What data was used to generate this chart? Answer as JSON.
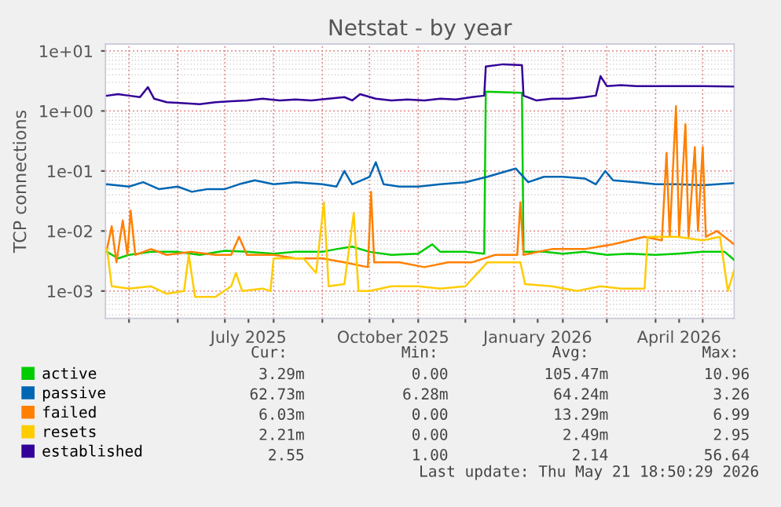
{
  "chart_data": {
    "type": "line",
    "title": "Netstat - by year",
    "ylabel": "TCP connections",
    "log": "y",
    "grid": true,
    "legend": "bottom",
    "marker": "none",
    "line_style": "solid",
    "xlim": [
      "2025-04-16",
      "2026-05-21"
    ],
    "ylim": [
      0.00035,
      13
    ],
    "yticks": [
      {
        "value": 0.001,
        "label": "1e-03"
      },
      {
        "value": 0.01,
        "label": "1e-02"
      },
      {
        "value": 0.1,
        "label": "1e-01"
      },
      {
        "value": 1,
        "label": "1e+00"
      },
      {
        "value": 10,
        "label": "1e+01"
      }
    ],
    "xticks": [
      {
        "value": "2025-05-01",
        "label": null
      },
      {
        "value": "2025-06-01",
        "label": null
      },
      {
        "value": "2025-07-01",
        "label": null
      },
      {
        "value": "2025-07-16",
        "label": "July 2025"
      },
      {
        "value": "2025-08-01",
        "label": null
      },
      {
        "value": "2025-09-01",
        "label": null
      },
      {
        "value": "2025-10-01",
        "label": null
      },
      {
        "value": "2025-10-16",
        "label": "October 2025"
      },
      {
        "value": "2025-11-01",
        "label": null
      },
      {
        "value": "2025-12-01",
        "label": null
      },
      {
        "value": "2026-01-01",
        "label": null
      },
      {
        "value": "2026-01-16",
        "label": "January 2026"
      },
      {
        "value": "2026-02-01",
        "label": null
      },
      {
        "value": "2026-03-01",
        "label": null
      },
      {
        "value": "2026-04-01",
        "label": null
      },
      {
        "value": "2026-04-16",
        "label": "April 2026"
      },
      {
        "value": "2026-05-01",
        "label": null
      }
    ],
    "series": [
      {
        "name": "active",
        "color": "#00cc00",
        "x": [
          "2025-04-17",
          "2025-04-24",
          "2025-05-01",
          "2025-05-15",
          "2025-06-01",
          "2025-06-15",
          "2025-07-01",
          "2025-07-15",
          "2025-08-01",
          "2025-08-15",
          "2025-09-01",
          "2025-09-10",
          "2025-09-20",
          "2025-10-01",
          "2025-10-15",
          "2025-11-01",
          "2025-11-10",
          "2025-11-15",
          "2025-12-01",
          "2025-12-13",
          "2025-12-14",
          "2026-01-06",
          "2026-01-07",
          "2026-01-20",
          "2026-02-01",
          "2026-02-15",
          "2026-03-01",
          "2026-03-15",
          "2026-04-01",
          "2026-04-15",
          "2026-05-01",
          "2026-05-15",
          "2026-05-21"
        ],
        "values": [
          0.0045,
          0.0035,
          0.004,
          0.0045,
          0.0045,
          0.004,
          0.0047,
          0.0045,
          0.0042,
          0.0045,
          0.0045,
          0.005,
          0.0055,
          0.0045,
          0.004,
          0.0042,
          0.006,
          0.0045,
          0.0045,
          0.0042,
          2.1,
          2.0,
          0.0045,
          0.0045,
          0.0042,
          0.0045,
          0.004,
          0.0042,
          0.004,
          0.0042,
          0.0045,
          0.0045,
          0.0033
        ]
      },
      {
        "name": "passive",
        "color": "#0066b3",
        "x": [
          "2025-04-17",
          "2025-05-01",
          "2025-05-10",
          "2025-05-20",
          "2025-06-01",
          "2025-06-10",
          "2025-06-20",
          "2025-07-01",
          "2025-07-10",
          "2025-07-20",
          "2025-08-01",
          "2025-08-15",
          "2025-09-01",
          "2025-09-10",
          "2025-09-15",
          "2025-09-20",
          "2025-10-01",
          "2025-10-05",
          "2025-10-10",
          "2025-10-20",
          "2025-11-01",
          "2025-11-15",
          "2025-12-01",
          "2025-12-15",
          "2026-01-02",
          "2026-01-10",
          "2026-01-20",
          "2026-02-01",
          "2026-02-15",
          "2026-02-22",
          "2026-02-28",
          "2026-03-05",
          "2026-03-20",
          "2026-04-01",
          "2026-04-15",
          "2026-05-01",
          "2026-05-21"
        ],
        "values": [
          0.06,
          0.055,
          0.065,
          0.05,
          0.055,
          0.045,
          0.05,
          0.05,
          0.06,
          0.07,
          0.06,
          0.065,
          0.06,
          0.055,
          0.1,
          0.06,
          0.08,
          0.14,
          0.06,
          0.055,
          0.055,
          0.06,
          0.065,
          0.08,
          0.11,
          0.065,
          0.08,
          0.08,
          0.075,
          0.06,
          0.1,
          0.07,
          0.065,
          0.06,
          0.06,
          0.058,
          0.063
        ]
      },
      {
        "name": "failed",
        "color": "#ff8000",
        "x": [
          "2025-04-17",
          "2025-04-20",
          "2025-04-23",
          "2025-04-27",
          "2025-04-30",
          "2025-05-02",
          "2025-05-05",
          "2025-05-15",
          "2025-05-25",
          "2025-06-10",
          "2025-06-25",
          "2025-07-05",
          "2025-07-10",
          "2025-07-15",
          "2025-08-01",
          "2025-08-15",
          "2025-09-01",
          "2025-09-15",
          "2025-09-30",
          "2025-10-02",
          "2025-10-04",
          "2025-10-20",
          "2025-11-05",
          "2025-11-20",
          "2025-12-05",
          "2025-12-20",
          "2026-01-03",
          "2026-01-05",
          "2026-01-07",
          "2026-01-25",
          "2026-02-15",
          "2026-03-05",
          "2026-03-25",
          "2026-04-05",
          "2026-04-08",
          "2026-04-10",
          "2026-04-14",
          "2026-04-16",
          "2026-04-20",
          "2026-04-22",
          "2026-04-26",
          "2026-04-28",
          "2026-05-01",
          "2026-05-03",
          "2026-05-10",
          "2026-05-21"
        ],
        "values": [
          0.005,
          0.012,
          0.003,
          0.015,
          0.004,
          0.022,
          0.004,
          0.005,
          0.004,
          0.0045,
          0.004,
          0.004,
          0.008,
          0.004,
          0.004,
          0.0035,
          0.0035,
          0.003,
          0.0025,
          0.045,
          0.003,
          0.003,
          0.0025,
          0.003,
          0.003,
          0.004,
          0.004,
          0.03,
          0.004,
          0.005,
          0.005,
          0.006,
          0.008,
          0.007,
          0.2,
          0.008,
          1.2,
          0.008,
          0.6,
          0.008,
          0.25,
          0.01,
          0.25,
          0.008,
          0.01,
          0.006
        ]
      },
      {
        "name": "resets",
        "color": "#ffcc00",
        "x": [
          "2025-04-17",
          "2025-04-20",
          "2025-05-01",
          "2025-05-15",
          "2025-05-25",
          "2025-06-05",
          "2025-06-08",
          "2025-06-12",
          "2025-06-25",
          "2025-07-05",
          "2025-07-08",
          "2025-07-12",
          "2025-07-25",
          "2025-07-30",
          "2025-08-01",
          "2025-08-20",
          "2025-08-28",
          "2025-09-02",
          "2025-09-05",
          "2025-09-15",
          "2025-09-21",
          "2025-09-24",
          "2025-10-01",
          "2025-10-15",
          "2025-11-01",
          "2025-11-15",
          "2025-12-01",
          "2025-12-15",
          "2026-01-05",
          "2026-01-08",
          "2026-01-25",
          "2026-02-10",
          "2026-02-25",
          "2026-03-10",
          "2026-03-25",
          "2026-03-27",
          "2026-04-15",
          "2026-05-01",
          "2026-05-12",
          "2026-05-17",
          "2026-05-21"
        ],
        "values": [
          0.005,
          0.0012,
          0.0011,
          0.0012,
          0.0009,
          0.001,
          0.004,
          0.0008,
          0.0008,
          0.0012,
          0.002,
          0.001,
          0.0011,
          0.001,
          0.0035,
          0.0035,
          0.002,
          0.03,
          0.0012,
          0.0013,
          0.02,
          0.001,
          0.001,
          0.0012,
          0.0012,
          0.0011,
          0.0012,
          0.003,
          0.003,
          0.0013,
          0.0012,
          0.001,
          0.0012,
          0.0011,
          0.0011,
          0.008,
          0.008,
          0.007,
          0.008,
          0.001,
          0.0022
        ]
      },
      {
        "name": "established",
        "color": "#330099",
        "x": [
          "2025-04-17",
          "2025-04-24",
          "2025-05-01",
          "2025-05-08",
          "2025-05-13",
          "2025-05-17",
          "2025-05-25",
          "2025-06-05",
          "2025-06-15",
          "2025-06-25",
          "2025-07-05",
          "2025-07-15",
          "2025-07-25",
          "2025-08-05",
          "2025-08-15",
          "2025-08-25",
          "2025-09-05",
          "2025-09-15",
          "2025-09-20",
          "2025-09-25",
          "2025-10-05",
          "2025-10-15",
          "2025-10-25",
          "2025-11-05",
          "2025-11-15",
          "2025-11-25",
          "2025-12-05",
          "2025-12-13",
          "2025-12-14",
          "2025-12-25",
          "2026-01-06",
          "2026-01-07",
          "2026-01-15",
          "2026-01-25",
          "2026-02-05",
          "2026-02-15",
          "2026-02-22",
          "2026-02-25",
          "2026-03-01",
          "2026-03-10",
          "2026-03-20",
          "2026-04-01",
          "2026-04-15",
          "2026-05-01",
          "2026-05-21"
        ],
        "values": [
          1.8,
          1.9,
          1.8,
          1.7,
          2.5,
          1.6,
          1.4,
          1.35,
          1.3,
          1.4,
          1.45,
          1.5,
          1.6,
          1.5,
          1.55,
          1.5,
          1.6,
          1.7,
          1.5,
          1.9,
          1.6,
          1.5,
          1.55,
          1.5,
          1.6,
          1.55,
          1.7,
          1.8,
          5.5,
          6.0,
          5.8,
          1.8,
          1.5,
          1.6,
          1.6,
          1.7,
          1.8,
          3.8,
          2.6,
          2.7,
          2.6,
          2.6,
          2.6,
          2.6,
          2.55
        ]
      }
    ],
    "annotations": [
      "Cur:",
      "Min:",
      "Avg:",
      "Max:",
      "3.29m",
      "0.00",
      "105.47m",
      "10.96",
      "62.73m",
      "6.28m",
      "64.24m",
      "3.26",
      "6.03m",
      "0.00",
      "13.29m",
      "6.99",
      "2.21m",
      "0.00",
      "2.49m",
      "2.95",
      "2.55",
      "1.00",
      "2.14",
      "56.64",
      "Last update: Thu May 21 18:50:29 2026"
    ]
  }
}
